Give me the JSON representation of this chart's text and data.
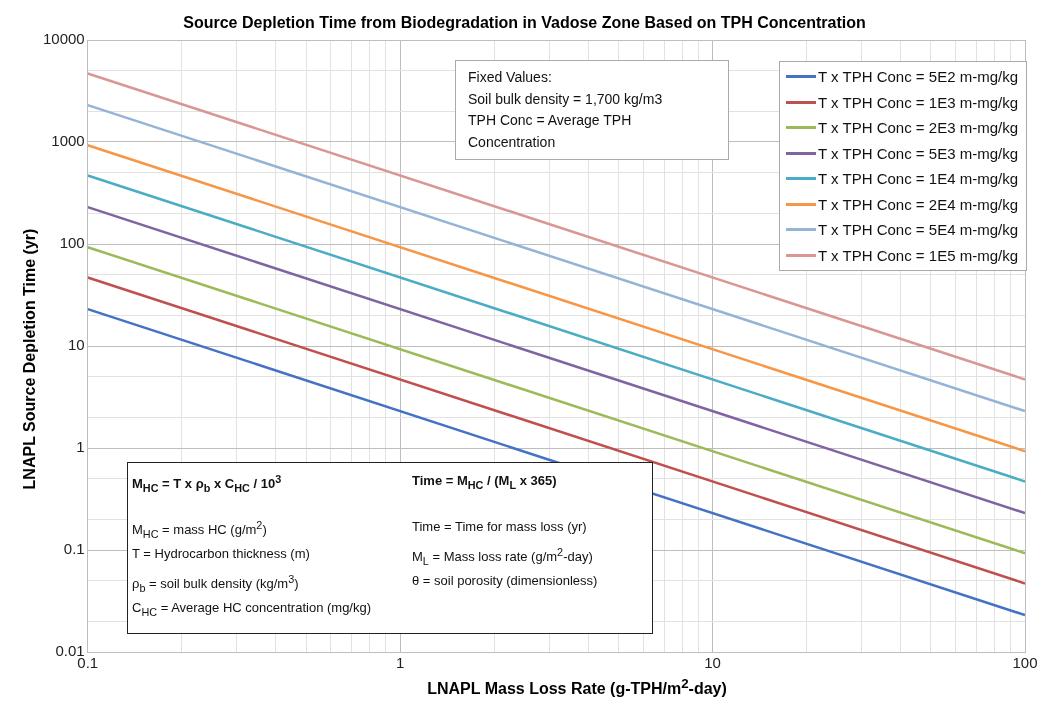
{
  "chart_data": {
    "type": "line",
    "title": "Source Depletion Time from Biodegradation in Vadose Zone Based on TPH Concentration",
    "xlabel": "LNAPL Mass Loss Rate (g-TPH/m$^{2}$-day)",
    "ylabel": "LNAPL Source Depletion Time (yr)",
    "x": [
      0.1,
      100
    ],
    "log": "xy",
    "grid": true,
    "legend": "top right",
    "marker": "none",
    "line_style": "solid",
    "xlim": [
      0.1,
      100
    ],
    "ylim": [
      0.01,
      10000
    ],
    "xticks": [
      0.1,
      {
        "value": 0.2,
        "label": null
      },
      {
        "value": 0.3,
        "label": null
      },
      {
        "value": 0.4,
        "label": null
      },
      {
        "value": 0.5,
        "label": null
      },
      {
        "value": 0.6,
        "label": null
      },
      {
        "value": 0.7,
        "label": null
      },
      {
        "value": 0.8,
        "label": null
      },
      {
        "value": 0.9,
        "label": null
      },
      1,
      {
        "value": 2,
        "label": null
      },
      {
        "value": 3,
        "label": null
      },
      {
        "value": 4,
        "label": null
      },
      {
        "value": 5,
        "label": null
      },
      {
        "value": 6,
        "label": null
      },
      {
        "value": 7,
        "label": null
      },
      {
        "value": 8,
        "label": null
      },
      {
        "value": 9,
        "label": null
      },
      10,
      {
        "value": 20,
        "label": null
      },
      {
        "value": 30,
        "label": null
      },
      {
        "value": 40,
        "label": null
      },
      {
        "value": 50,
        "label": null
      },
      {
        "value": 60,
        "label": null
      },
      {
        "value": 70,
        "label": null
      },
      {
        "value": 80,
        "label": null
      },
      {
        "value": 90,
        "label": null
      },
      100
    ],
    "yticks": [
      0.01,
      {
        "value": 0.02,
        "label": null
      },
      {
        "value": 0.05,
        "label": null
      },
      0.1,
      {
        "value": 0.2,
        "label": null
      },
      {
        "value": 0.5,
        "label": null
      },
      1,
      {
        "value": 2,
        "label": null
      },
      {
        "value": 5,
        "label": null
      },
      10,
      {
        "value": 20,
        "label": null
      },
      {
        "value": 50,
        "label": null
      },
      100,
      {
        "value": 200,
        "label": null
      },
      {
        "value": 500,
        "label": null
      },
      1000,
      {
        "value": 2000,
        "label": null
      },
      {
        "value": 5000,
        "label": null
      },
      10000
    ],
    "series": [
      {
        "name": "T x TPH Conc = 5E2 m-mg/kg",
        "color": "#4472c4",
        "values": [
          23,
          0.023
        ]
      },
      {
        "name": "T x TPH Conc = 1E3 m-mg/kg",
        "color": "#c0504d",
        "values": [
          47,
          0.047
        ]
      },
      {
        "name": "T x TPH Conc = 2E3 m-mg/kg",
        "color": "#9bbb59",
        "values": [
          93,
          0.093
        ]
      },
      {
        "name": "T x TPH Conc = 5E3 m-mg/kg",
        "color": "#8064a2",
        "values": [
          230,
          0.23
        ]
      },
      {
        "name": "T x TPH Conc = 1E4 m-mg/kg",
        "color": "#4bacc6",
        "values": [
          470,
          0.47
        ]
      },
      {
        "name": "T x TPH Conc = 2E4 m-mg/kg",
        "color": "#f79646",
        "values": [
          930,
          0.93
        ]
      },
      {
        "name": "T x TPH Conc = 5E4 m-mg/kg",
        "color": "#95b3d7",
        "values": [
          2300,
          2.3
        ]
      },
      {
        "name": "T x TPH Conc = 1E5 m-mg/kg",
        "color": "#d99694",
        "values": [
          4700,
          4.7
        ]
      }
    ],
    "annotations": [
      "Fixed Values:",
      "Soil bulk density = 1,700 kg/m3",
      "TPH Conc = Average TPH",
      "Concentration",
      "M$_{HC}$ = T x ρ$_{b}$ x C$_{HC}$ / 10$^{3}$",
      "Time = M$_{HC}$ / (M$_{L}$ x 365)",
      "M$_{HC}$ = mass HC (g/m$^{2}$)",
      "Time = Time for mass loss (yr)",
      "T = Hydrocarbon thickness (m)",
      "M$_{L}$ = Mass loss rate (g/m$^{2}$-day)",
      "ρ$_{b}$ = soil bulk density (kg/m$^{3}$)",
      "θ = soil porosity (dimensionless)",
      "C$_{HC}$ = Average HC concentration (mg/kg)"
    ]
  }
}
